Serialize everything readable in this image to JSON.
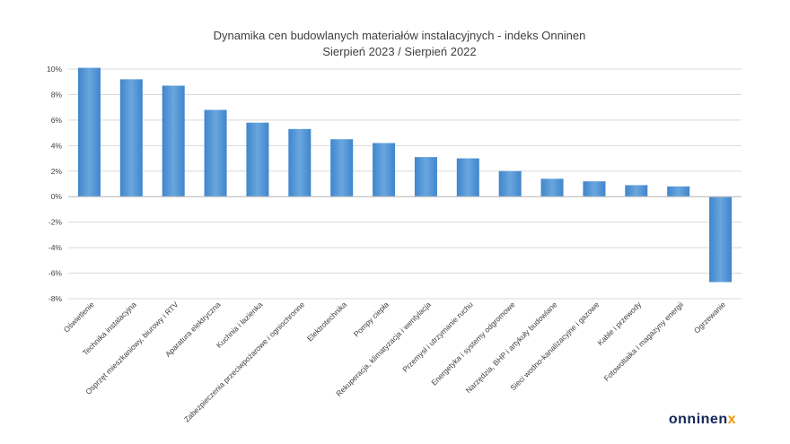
{
  "chart_data": {
    "type": "bar",
    "title": "Dynamika cen budowlanych materiałów instalacyjnych - indeks Onninen",
    "subtitle": "Sierpień 2023 / Sierpień 2022",
    "categories": [
      "Oświetlenie",
      "Technika instalacyjna",
      "Osprzęt mieszkaniowy, biurowy i RTV",
      "Aparatura elektryczna",
      "Kuchnia i łazienka",
      "Zabezpieczenia przeciwpożarowe i ogniochronne",
      "Elektrotechnika",
      "Pompy ciepła",
      "Rekuperacja, klimatyzacja i wentylacja",
      "Przemysł i utrzymanie ruchu",
      "Energetyka i systemy odgromowe",
      "Narzędzia, BHP i artykuły budowlane",
      "Sieci wodno-kanalizacyjne i gazowe",
      "Kable i przewody",
      "Fotowoltaika i magazyny energii",
      "Ogrzewanie"
    ],
    "values": [
      10.1,
      9.2,
      8.7,
      6.8,
      5.8,
      5.3,
      4.5,
      4.2,
      3.1,
      3.0,
      2.0,
      1.4,
      1.2,
      0.9,
      0.8,
      -6.7
    ],
    "yticks": [
      "10%",
      "8%",
      "6%",
      "4%",
      "2%",
      "0%",
      "-2%",
      "-4%",
      "-6%",
      "-8%"
    ],
    "ylim": [
      -8,
      10
    ],
    "grid": true,
    "bar_color": "#5b9bd5"
  },
  "logo": {
    "main": "onninen",
    "accent": "x"
  }
}
